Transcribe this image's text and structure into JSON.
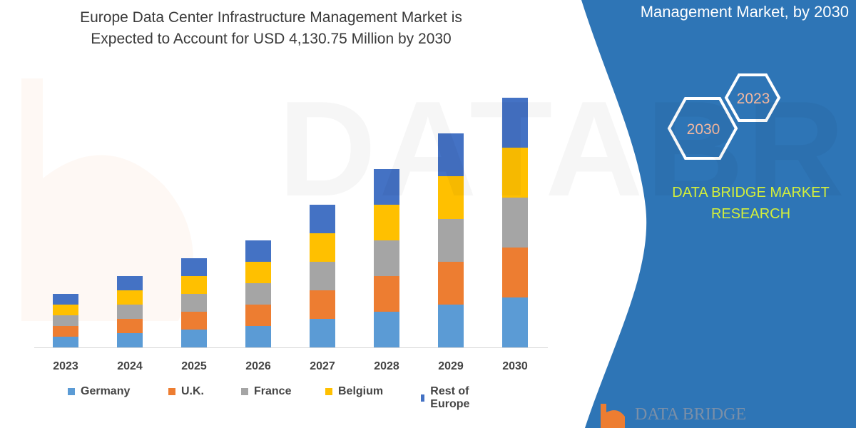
{
  "title": [
    "Europe Data Center Infrastructure Management Market is",
    "Expected to Account for USD 4,130.75 Million by 2030"
  ],
  "side_panel": {
    "title": "Management Market, by 2030",
    "hex_labels": [
      "2023",
      "2030"
    ],
    "brand": [
      "DATA BRIDGE MARKET",
      "RESEARCH"
    ],
    "logo_text": "DATA BRIDGE",
    "color": "#2e75b6"
  },
  "watermark": "DATABRIDGE",
  "chart_data": {
    "type": "bar",
    "stacked": true,
    "categories": [
      "2023",
      "2024",
      "2025",
      "2026",
      "2027",
      "2028",
      "2029",
      "2030"
    ],
    "series": [
      {
        "name": "Germany",
        "color": "#5b9bd5",
        "values": [
          15,
          20,
          25,
          30,
          40,
          50,
          60,
          70
        ]
      },
      {
        "name": "U.K.",
        "color": "#ed7d31",
        "values": [
          15,
          20,
          25,
          30,
          40,
          50,
          60,
          70
        ]
      },
      {
        "name": "France",
        "color": "#a5a5a5",
        "values": [
          15,
          20,
          25,
          30,
          40,
          50,
          60,
          70
        ]
      },
      {
        "name": "Belgium",
        "color": "#ffc000",
        "values": [
          15,
          20,
          25,
          30,
          40,
          50,
          60,
          70
        ]
      },
      {
        "name": "Rest of Europe",
        "color": "#4472c4",
        "values": [
          15,
          20,
          25,
          30,
          40,
          50,
          60,
          70
        ]
      }
    ],
    "y_axis_shown": false,
    "grid": false,
    "legend_position": "bottom"
  }
}
